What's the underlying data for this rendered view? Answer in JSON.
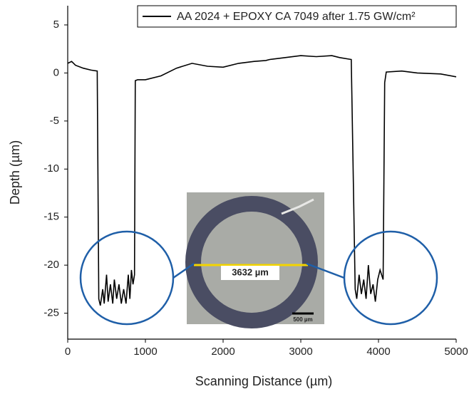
{
  "chart_data": {
    "type": "line",
    "xlabel": "Scanning Distance (µm)",
    "ylabel": "Depth (µm)",
    "xlim": [
      0,
      5000
    ],
    "ylim": [
      -27.7,
      7
    ],
    "xticks": [
      0,
      1000,
      2000,
      3000,
      4000,
      5000
    ],
    "yticks": [
      5,
      0,
      -5,
      -10,
      -15,
      -20,
      -25
    ],
    "legend": "upper right",
    "series": [
      {
        "name": "AA 2024 + EPOXY CA 7049 after 1.75 GW/cm²",
        "color": "#000000",
        "x": [
          0,
          50,
          100,
          200,
          300,
          380,
          400,
          420,
          450,
          470,
          500,
          520,
          550,
          580,
          600,
          630,
          660,
          690,
          720,
          750,
          780,
          800,
          820,
          840,
          860,
          870,
          900,
          1000,
          1200,
          1400,
          1600,
          1800,
          2000,
          2200,
          2400,
          2550,
          2600,
          2800,
          3000,
          3200,
          3400,
          3500,
          3650,
          3700,
          3720,
          3750,
          3780,
          3810,
          3840,
          3870,
          3900,
          3930,
          3960,
          3990,
          4020,
          4060,
          4080,
          4100,
          4300,
          4500,
          4800,
          5000
        ],
        "values": [
          1.0,
          1.2,
          0.8,
          0.5,
          0.3,
          0.2,
          -23.5,
          -24.2,
          -22.5,
          -24,
          -21,
          -23.8,
          -22,
          -24,
          -21.5,
          -23.5,
          -22,
          -24,
          -22.5,
          -24,
          -21,
          -23.5,
          -20.5,
          -22,
          -21,
          -0.8,
          -0.7,
          -0.7,
          -0.3,
          0.5,
          1.0,
          0.7,
          0.6,
          1.0,
          1.2,
          1.3,
          1.4,
          1.6,
          1.8,
          1.7,
          1.8,
          1.6,
          1.4,
          -22.5,
          -23.5,
          -21,
          -23,
          -21.5,
          -23.5,
          -20,
          -23,
          -22,
          -23.8,
          -21.5,
          -20.5,
          -21.5,
          -1.0,
          0.1,
          0.2,
          0,
          -0.1,
          -0.4
        ]
      }
    ],
    "annotations": [
      "3632 µm",
      "500 µm"
    ]
  }
}
